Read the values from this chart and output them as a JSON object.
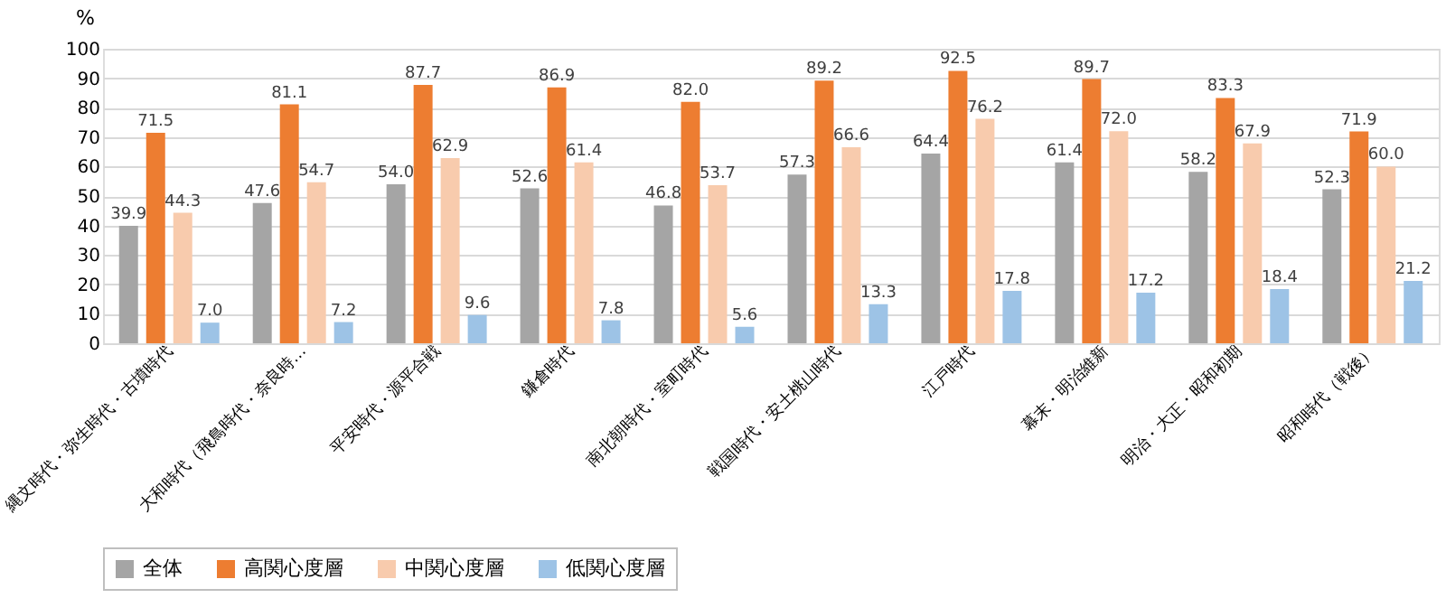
{
  "chart_data": {
    "type": "bar",
    "ylabel": "%",
    "categories": [
      "縄文時代・弥生時代・古墳時代",
      "大和時代（飛鳥時代・奈良時…",
      "平安時代・源平合戦",
      "鎌倉時代",
      "南北朝時代・室町時代",
      "戦国時代・安土桃山時代",
      "江戸時代",
      "幕末・明治維新",
      "明治・大正・昭和初期",
      "昭和時代（戦後）"
    ],
    "series": [
      {
        "name": "全体",
        "color": "#a5a5a5",
        "values": [
          39.9,
          47.6,
          54.0,
          52.6,
          46.8,
          57.3,
          64.4,
          61.4,
          58.2,
          52.3
        ],
        "value_labels": [
          "39.9",
          "47.6",
          "54.0",
          "52.6",
          "46.8",
          "57.3",
          "64.4",
          "61.4",
          "58.2",
          "52.3"
        ]
      },
      {
        "name": "高関心度層",
        "color": "#ed7d31",
        "values": [
          71.5,
          81.1,
          87.7,
          86.9,
          82.0,
          89.2,
          92.5,
          89.7,
          83.3,
          71.9
        ],
        "value_labels": [
          "71.5",
          "81.1",
          "87.7",
          "86.9",
          "82.0",
          "89.2",
          "92.5",
          "89.7",
          "83.3",
          "71.9"
        ]
      },
      {
        "name": "中関心度層",
        "color": "#f8cbad",
        "values": [
          44.3,
          54.7,
          62.9,
          61.4,
          53.7,
          66.6,
          76.2,
          72.0,
          67.9,
          60.0
        ],
        "value_labels": [
          "44.3",
          "54.7",
          "62.9",
          "61.4",
          "53.7",
          "66.6",
          "76.2",
          "72.0",
          "67.9",
          "60.0"
        ]
      },
      {
        "name": "低関心度層",
        "color": "#9dc3e6",
        "values": [
          7.0,
          7.2,
          9.6,
          7.8,
          5.6,
          13.3,
          17.8,
          17.2,
          18.4,
          21.2
        ],
        "value_labels": [
          "7.0",
          "7.2",
          "9.6",
          "7.8",
          "5.6",
          "13.3",
          "17.8",
          "17.2",
          "18.4",
          "21.2"
        ]
      }
    ],
    "ylim": [
      0,
      100
    ],
    "yticks": [
      0,
      10,
      20,
      30,
      40,
      50,
      60,
      70,
      80,
      90,
      100
    ],
    "grid": "y",
    "legend": "bottom"
  }
}
